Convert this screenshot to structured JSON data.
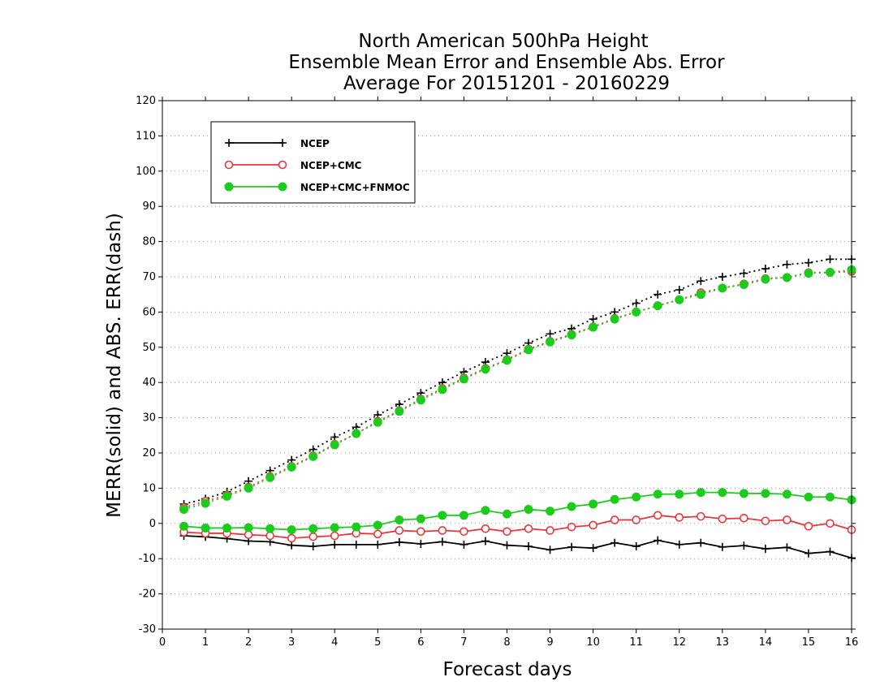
{
  "chart_data": {
    "type": "line",
    "title": [
      "North American 500hPa Height",
      "Ensemble Mean Error and Ensemble Abs. Error",
      "Average For 20151201 - 20160229"
    ],
    "xlabel": "Forecast days",
    "ylabel": "MERR(solid) and ABS. ERR(dash)",
    "xlim": [
      0,
      16
    ],
    "ylim": [
      -30,
      120
    ],
    "xticks": [
      0,
      1,
      2,
      3,
      4,
      5,
      6,
      7,
      8,
      9,
      10,
      11,
      12,
      13,
      14,
      15,
      16
    ],
    "yticks": [
      -30,
      -20,
      -10,
      0,
      10,
      20,
      30,
      40,
      50,
      60,
      70,
      80,
      90,
      100,
      110,
      120
    ],
    "grid": "horizontal dotted",
    "legend_position": "top-left",
    "x": [
      0.5,
      1.0,
      1.5,
      2.0,
      2.5,
      3.0,
      3.5,
      4.0,
      4.5,
      5.0,
      5.5,
      6.0,
      6.5,
      7.0,
      7.5,
      8.0,
      8.5,
      9.0,
      9.5,
      10.0,
      10.5,
      11.0,
      11.5,
      12.0,
      12.5,
      13.0,
      13.5,
      14.0,
      14.5,
      15.0,
      15.5,
      16.0
    ],
    "series": [
      {
        "name": "NCEP",
        "color": "#000000",
        "marker": "plus",
        "merr": [
          -3.5,
          -3.8,
          -4.3,
          -5.0,
          -5.2,
          -6.2,
          -6.5,
          -6.0,
          -6.0,
          -6.0,
          -5.3,
          -5.8,
          -5.2,
          -6.0,
          -5.0,
          -6.2,
          -6.5,
          -7.5,
          -6.7,
          -7.0,
          -5.5,
          -6.5,
          -4.8,
          -6.0,
          -5.5,
          -6.7,
          -6.3,
          -7.2,
          -6.8,
          -8.5,
          -8.0,
          -9.8
        ],
        "abs_err": [
          5.5,
          7.0,
          9.0,
          12.0,
          15.0,
          18.0,
          21.0,
          24.5,
          27.3,
          30.8,
          33.8,
          37.0,
          40.0,
          43.0,
          45.8,
          48.3,
          51.2,
          53.8,
          55.3,
          58.0,
          60.0,
          62.5,
          65.0,
          66.3,
          68.8,
          70.0,
          71.0,
          72.3,
          73.5,
          74.0,
          75.0,
          75.0
        ]
      },
      {
        "name": "NCEP+CMC",
        "color": "#e8383c",
        "marker": "open-circle",
        "merr": [
          -2.5,
          -2.8,
          -2.8,
          -3.2,
          -3.5,
          -4.2,
          -3.8,
          -3.5,
          -2.8,
          -3.0,
          -2.0,
          -2.3,
          -2.0,
          -2.3,
          -1.5,
          -2.3,
          -1.5,
          -2.0,
          -1.0,
          -0.5,
          1.0,
          1.0,
          2.3,
          1.7,
          2.0,
          1.3,
          1.5,
          0.7,
          1.0,
          -0.8,
          0.0,
          -1.8
        ],
        "abs_err": [
          4.5,
          6.3,
          8.0,
          10.3,
          13.3,
          16.2,
          19.2,
          22.5,
          25.5,
          29.0,
          32.0,
          35.3,
          38.3,
          41.3,
          44.0,
          46.5,
          49.5,
          51.7,
          53.7,
          55.8,
          58.2,
          60.0,
          61.8,
          63.5,
          65.5,
          66.8,
          68.0,
          69.5,
          69.8,
          71.2,
          71.2,
          71.5
        ]
      },
      {
        "name": "NCEP+CMC+FNMOC",
        "color": "#1ccc1c",
        "marker": "filled-circle",
        "merr": [
          -0.8,
          -1.3,
          -1.3,
          -1.2,
          -1.5,
          -1.8,
          -1.5,
          -1.2,
          -1.0,
          -0.5,
          1.0,
          1.3,
          2.3,
          2.3,
          3.7,
          2.7,
          4.0,
          3.5,
          4.8,
          5.5,
          6.8,
          7.5,
          8.3,
          8.3,
          8.8,
          8.8,
          8.5,
          8.5,
          8.3,
          7.5,
          7.5,
          6.7
        ],
        "abs_err": [
          4.0,
          5.7,
          7.7,
          10.0,
          13.0,
          16.0,
          19.0,
          22.3,
          25.5,
          28.7,
          31.8,
          35.0,
          38.0,
          41.0,
          43.8,
          46.3,
          49.3,
          51.5,
          53.5,
          55.7,
          58.0,
          60.0,
          61.8,
          63.5,
          65.0,
          66.8,
          67.8,
          69.3,
          69.8,
          71.0,
          71.3,
          72.0
        ]
      }
    ]
  }
}
